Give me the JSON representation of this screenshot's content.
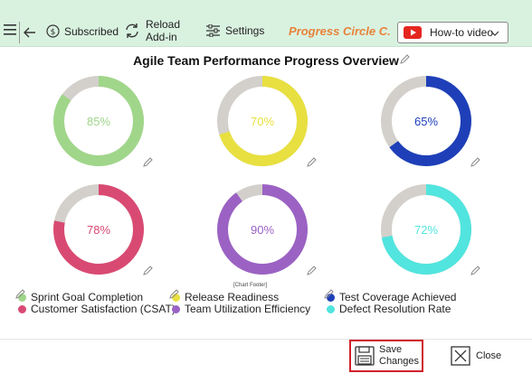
{
  "toolbar": {
    "subscribed_label": "Subscribed",
    "reload_label_1": "Reload",
    "reload_label_2": "Add-in",
    "settings_label": "Settings",
    "addin_title": "Progress Circle C...",
    "video_label": "How-to video"
  },
  "chart_data": {
    "type": "pie",
    "title": "Agile Team Performance Progress Overview",
    "footer": "[Chart Footer]",
    "remainder_color": "#d3d0cb",
    "series": [
      {
        "name": "Sprint Goal Completion",
        "value": 85,
        "label": "85%",
        "color": "#a0d68a"
      },
      {
        "name": "Release Readiness",
        "value": 70,
        "label": "70%",
        "color": "#e8e040"
      },
      {
        "name": "Test Coverage Achieved",
        "value": 65,
        "label": "65%",
        "color": "#1e3fb8"
      },
      {
        "name": "Customer Satisfaction (CSAT)",
        "value": 78,
        "label": "78%",
        "color": "#d94a72"
      },
      {
        "name": "Team Utilization Efficiency",
        "value": 90,
        "label": "90%",
        "color": "#9b62c4"
      },
      {
        "name": "Defect Resolution Rate",
        "value": 72,
        "label": "72%",
        "color": "#52e4de"
      }
    ]
  },
  "footer": {
    "save_label_1": "Save",
    "save_label_2": "Changes",
    "close_label": "Close"
  }
}
